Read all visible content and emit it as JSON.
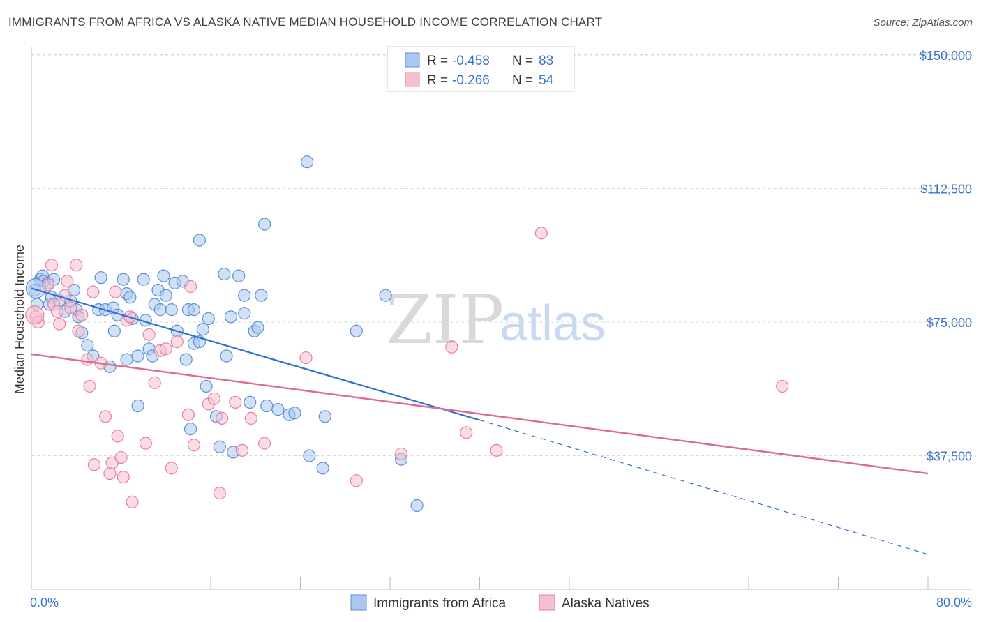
{
  "title": "IMMIGRANTS FROM AFRICA VS ALASKA NATIVE MEDIAN HOUSEHOLD INCOME CORRELATION CHART",
  "source": "Source: ZipAtlas.com",
  "watermark": {
    "zip": "ZIP",
    "atlas": "atlas"
  },
  "colors": {
    "blue_fill": "#aac8ef",
    "blue_stroke": "#5b8fd6",
    "blue_line": "#2f6fd0",
    "pink_fill": "#f5bfd0",
    "pink_stroke": "#e87fa0",
    "pink_line": "#e0698f",
    "tick_blue": "#3a73c9",
    "grid": "#d8d8d8"
  },
  "legend": {
    "row1": {
      "r_label": "R = ",
      "r_value": "-0.458",
      "n_label": "N = ",
      "n_value": "83"
    },
    "row2": {
      "r_label": "R = ",
      "r_value": "-0.266",
      "n_label": "N = ",
      "n_value": "54"
    }
  },
  "bottom_legend": {
    "series1": "Immigrants from Africa",
    "series2": "Alaska Natives"
  },
  "chart_data": {
    "type": "scatter",
    "title": "IMMIGRANTS FROM AFRICA VS ALASKA NATIVE MEDIAN HOUSEHOLD INCOME CORRELATION CHART",
    "xlabel": "",
    "ylabel": "Median Household Income",
    "xlim": [
      0,
      80
    ],
    "ylim": [
      0,
      157500
    ],
    "x_tick_labels": [
      "0.0%",
      "80.0%"
    ],
    "y_ticks": [
      37500,
      75000,
      112500,
      150000
    ],
    "y_tick_labels": [
      "$37,500",
      "$75,000",
      "$112,500",
      "$150,000"
    ],
    "grid": "horizontal dashed",
    "legend_placement": "top-center",
    "series": [
      {
        "name": "Immigrants from Africa",
        "color": "#aac8ef",
        "points": [
          [
            0.3,
            84000
          ],
          [
            0.5,
            80000
          ],
          [
            0.8,
            87000
          ],
          [
            1.0,
            88000
          ],
          [
            1.1,
            86500
          ],
          [
            1.5,
            86000
          ],
          [
            1.6,
            80000
          ],
          [
            1.8,
            82000
          ],
          [
            2.0,
            87000
          ],
          [
            2.5,
            81000
          ],
          [
            3.0,
            78000
          ],
          [
            3.5,
            81000
          ],
          [
            3.8,
            84000
          ],
          [
            4.0,
            78500
          ],
          [
            4.2,
            76500
          ],
          [
            4.5,
            72000
          ],
          [
            5.0,
            68500
          ],
          [
            5.5,
            65500
          ],
          [
            6.0,
            78500
          ],
          [
            6.2,
            87500
          ],
          [
            6.6,
            78500
          ],
          [
            7.0,
            62500
          ],
          [
            7.3,
            79000
          ],
          [
            7.7,
            77000
          ],
          [
            7.4,
            72500
          ],
          [
            8.2,
            87000
          ],
          [
            8.5,
            64500
          ],
          [
            8.5,
            83000
          ],
          [
            8.8,
            82000
          ],
          [
            9.0,
            76000
          ],
          [
            9.5,
            65500
          ],
          [
            9.5,
            51500
          ],
          [
            10.0,
            87000
          ],
          [
            10.2,
            75500
          ],
          [
            10.5,
            67500
          ],
          [
            10.8,
            65500
          ],
          [
            11.0,
            80000
          ],
          [
            11.3,
            84000
          ],
          [
            11.5,
            78500
          ],
          [
            11.8,
            88000
          ],
          [
            12.0,
            82500
          ],
          [
            12.5,
            78500
          ],
          [
            12.8,
            86000
          ],
          [
            13.0,
            72500
          ],
          [
            13.5,
            86500
          ],
          [
            13.8,
            64500
          ],
          [
            14.0,
            78500
          ],
          [
            14.2,
            45000
          ],
          [
            14.5,
            69000
          ],
          [
            14.5,
            78500
          ],
          [
            15.0,
            69500
          ],
          [
            15.0,
            98000
          ],
          [
            15.3,
            73000
          ],
          [
            15.6,
            57000
          ],
          [
            15.8,
            76000
          ],
          [
            16.5,
            48500
          ],
          [
            16.8,
            40000
          ],
          [
            17.2,
            88500
          ],
          [
            17.4,
            65500
          ],
          [
            17.8,
            76500
          ],
          [
            18.0,
            38500
          ],
          [
            18.5,
            88000
          ],
          [
            19.0,
            77500
          ],
          [
            19.0,
            82500
          ],
          [
            19.5,
            52500
          ],
          [
            19.9,
            72500
          ],
          [
            20.2,
            73500
          ],
          [
            20.5,
            82500
          ],
          [
            20.8,
            102500
          ],
          [
            21.0,
            51500
          ],
          [
            22.0,
            50500
          ],
          [
            23.0,
            49000
          ],
          [
            23.5,
            49500
          ],
          [
            24.6,
            120000
          ],
          [
            24.8,
            37500
          ],
          [
            26.0,
            34000
          ],
          [
            26.2,
            48500
          ],
          [
            29.0,
            72500
          ],
          [
            31.6,
            82500
          ],
          [
            33.0,
            36500
          ],
          [
            34.4,
            23500
          ]
        ]
      },
      {
        "name": "Alaska Natives",
        "color": "#f5bfd0",
        "points": [
          [
            0.4,
            76500
          ],
          [
            0.6,
            75000
          ],
          [
            1.5,
            85500
          ],
          [
            1.8,
            91000
          ],
          [
            2.0,
            80000
          ],
          [
            2.3,
            78000
          ],
          [
            2.5,
            74500
          ],
          [
            3.0,
            82500
          ],
          [
            3.2,
            86500
          ],
          [
            3.5,
            79000
          ],
          [
            4.0,
            91000
          ],
          [
            4.2,
            72500
          ],
          [
            4.5,
            77000
          ],
          [
            5.0,
            64500
          ],
          [
            5.2,
            57000
          ],
          [
            5.5,
            83500
          ],
          [
            5.6,
            35000
          ],
          [
            6.2,
            63500
          ],
          [
            6.6,
            48500
          ],
          [
            7.0,
            32500
          ],
          [
            7.2,
            35500
          ],
          [
            7.5,
            83500
          ],
          [
            7.7,
            43000
          ],
          [
            8.0,
            37000
          ],
          [
            8.2,
            31500
          ],
          [
            8.5,
            75500
          ],
          [
            8.8,
            76500
          ],
          [
            9.0,
            24500
          ],
          [
            10.2,
            41000
          ],
          [
            10.5,
            71500
          ],
          [
            11.0,
            58000
          ],
          [
            11.5,
            67000
          ],
          [
            12.0,
            67500
          ],
          [
            12.5,
            34000
          ],
          [
            13.0,
            69500
          ],
          [
            14.0,
            49000
          ],
          [
            14.2,
            85000
          ],
          [
            14.5,
            40500
          ],
          [
            15.8,
            52000
          ],
          [
            16.3,
            53500
          ],
          [
            16.8,
            27000
          ],
          [
            17.0,
            48000
          ],
          [
            18.2,
            52500
          ],
          [
            18.8,
            39000
          ],
          [
            19.6,
            48000
          ],
          [
            20.8,
            41000
          ],
          [
            24.5,
            65000
          ],
          [
            29.0,
            30500
          ],
          [
            33.0,
            38000
          ],
          [
            37.5,
            68000
          ],
          [
            38.8,
            44000
          ],
          [
            41.5,
            39000
          ],
          [
            45.5,
            100000
          ],
          [
            67.0,
            57000
          ]
        ]
      }
    ],
    "trendlines": [
      {
        "name": "Immigrants from Africa",
        "x": [
          0,
          40
        ],
        "y": [
          84500,
          47500
        ],
        "dashed_extension_to_x": 80,
        "dashed_extension_y": 9800
      },
      {
        "name": "Alaska Natives",
        "x": [
          0,
          80
        ],
        "y": [
          66000,
          32500
        ]
      }
    ]
  }
}
